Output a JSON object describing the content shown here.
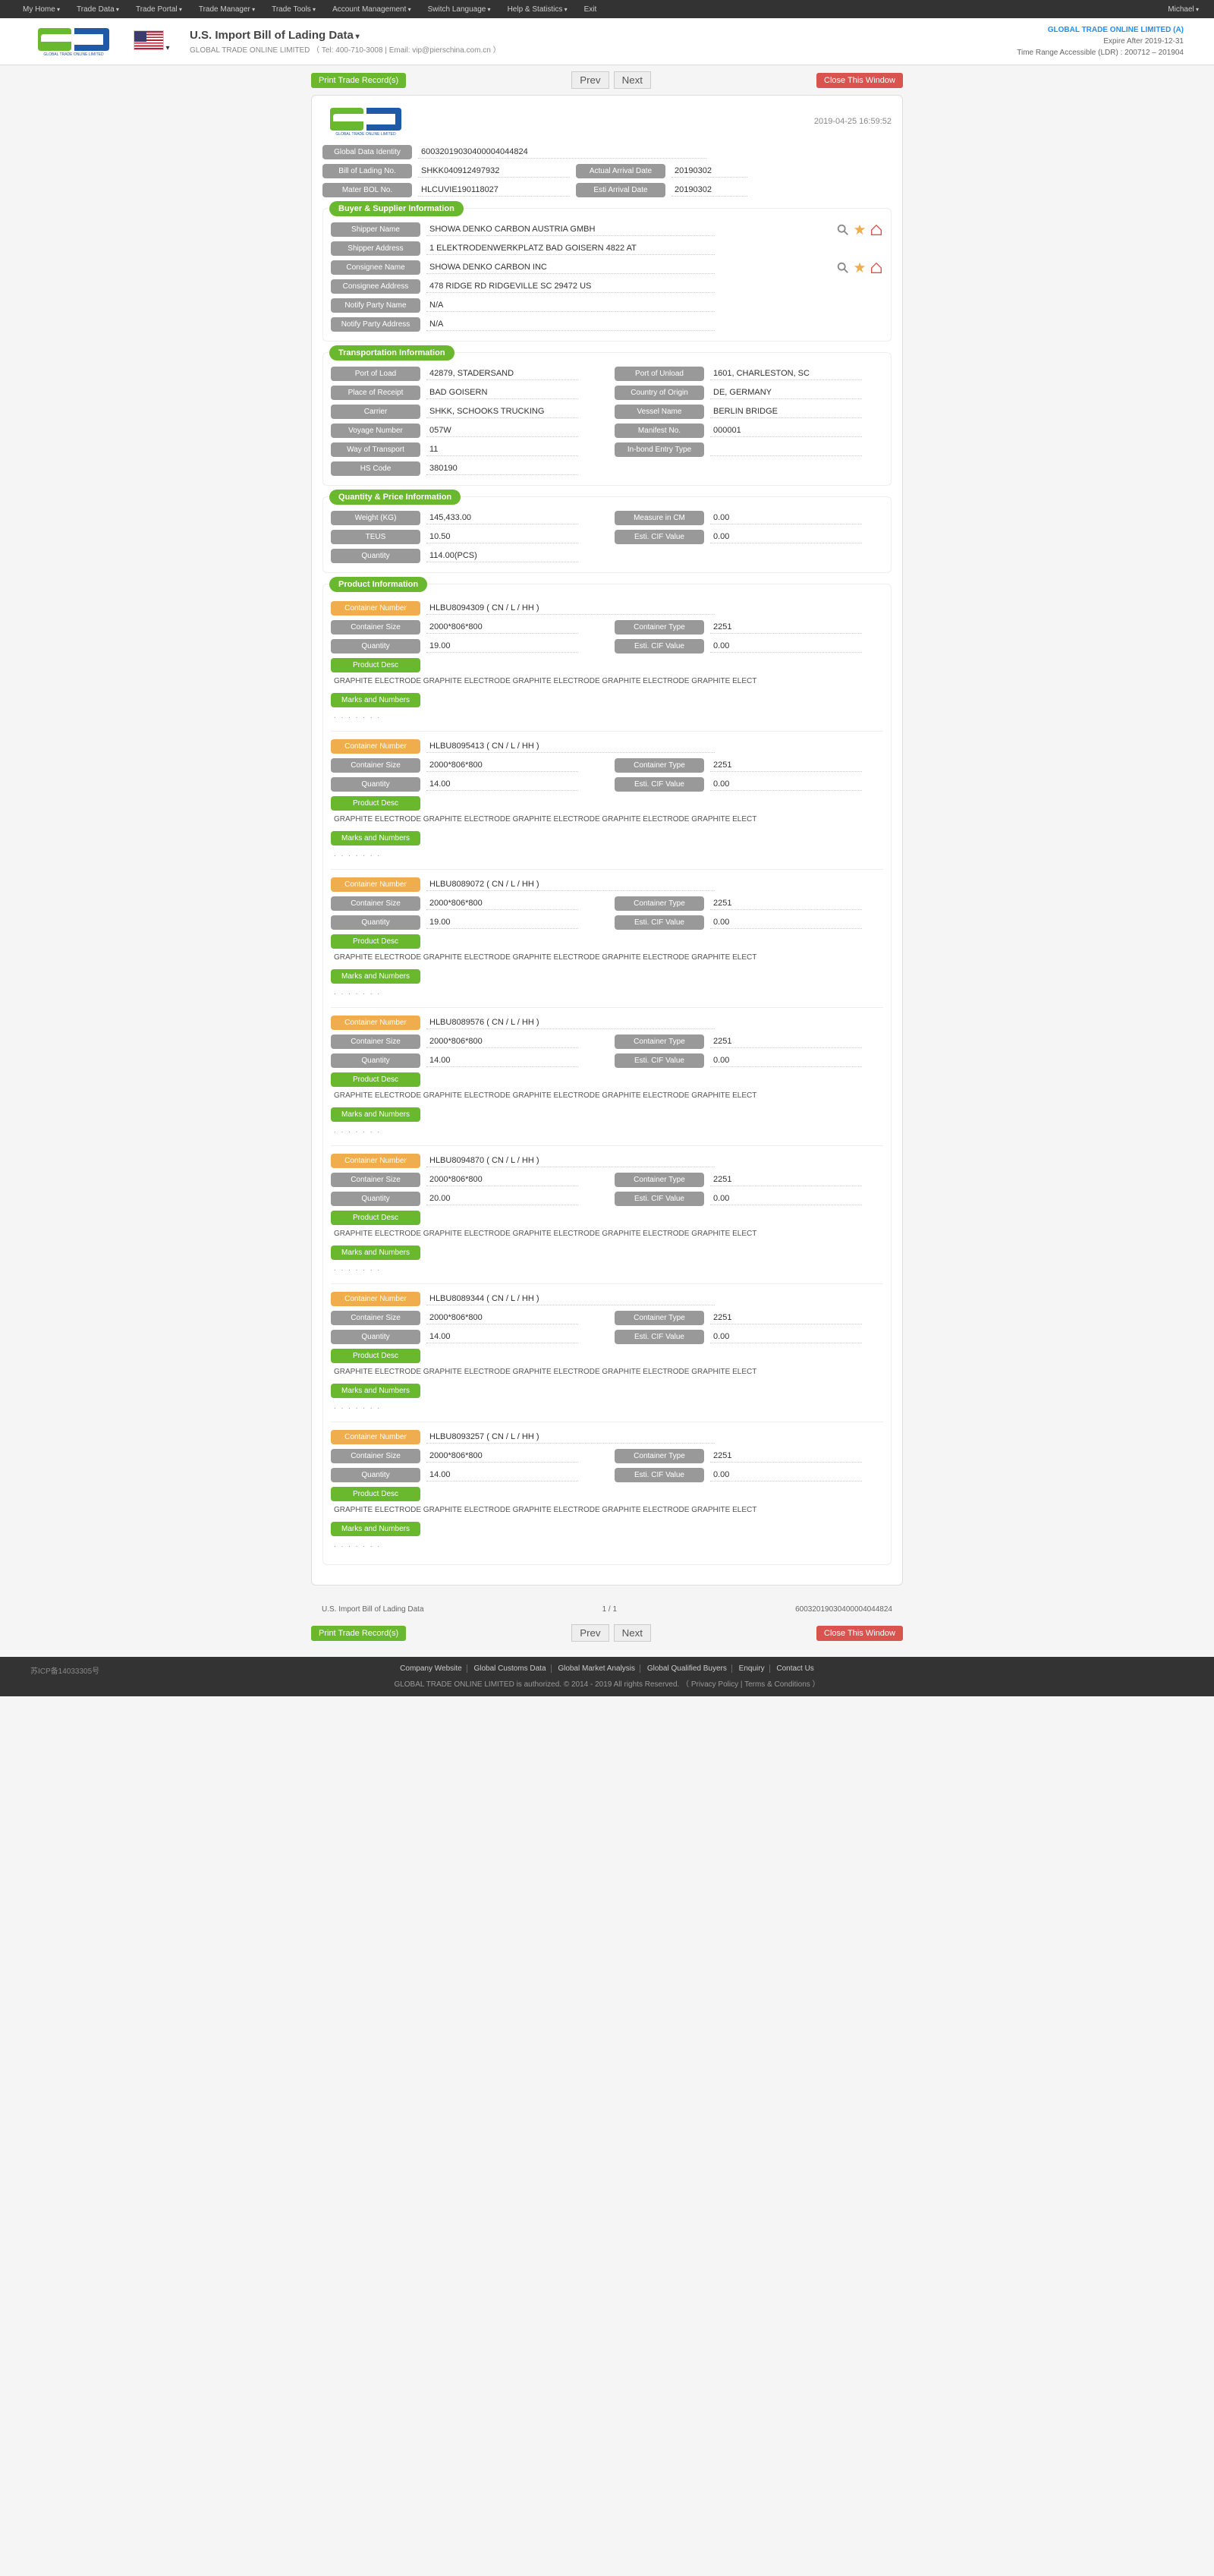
{
  "topnav": {
    "items": [
      "My Home",
      "Trade Data",
      "Trade Portal",
      "Trade Manager",
      "Trade Tools",
      "Account Management",
      "Switch Language",
      "Help & Statistics",
      "Exit"
    ],
    "user": "Michael"
  },
  "header": {
    "title": "U.S. Import Bill of Lading Data",
    "company_line": "GLOBAL TRADE ONLINE LIMITED （ Tel: 400-710-3008 | Email: vip@pierschina.com.cn ）",
    "right": {
      "l1": "GLOBAL TRADE ONLINE LIMITED (A)",
      "l2": "Expire After 2019-12-31",
      "l3": "Time Range Accessible (LDR) : 200712 – 201904"
    }
  },
  "actions": {
    "print": "Print Trade Record(s)",
    "prev": "Prev",
    "next": "Next",
    "close": "Close This Window"
  },
  "record": {
    "timestamp": "2019-04-25 16:59:52",
    "ident": {
      "gdi_label": "Global Data Identity",
      "gdi": "60032019030400004044824",
      "bol_label": "Bill of Lading No.",
      "bol": "SHKK040912497932",
      "mbol_label": "Mater BOL No.",
      "mbol": "HLCUVIE190118027",
      "aad_label": "Actual Arrival Date",
      "aad": "20190302",
      "ead_label": "Esti Arrival Date",
      "ead": "20190302"
    },
    "buyer": {
      "section": "Buyer & Supplier Information",
      "shipper_name_l": "Shipper Name",
      "shipper_name": "SHOWA DENKO CARBON AUSTRIA GMBH",
      "shipper_addr_l": "Shipper Address",
      "shipper_addr": "1 ELEKTRODENWERKPLATZ BAD GOISERN 4822 AT",
      "cons_name_l": "Consignee Name",
      "cons_name": "SHOWA DENKO CARBON INC",
      "cons_addr_l": "Consignee Address",
      "cons_addr": "478 RIDGE RD RIDGEVILLE SC 29472 US",
      "notify_name_l": "Notify Party Name",
      "notify_name": "N/A",
      "notify_addr_l": "Notify Party Address",
      "notify_addr": "N/A"
    },
    "trans": {
      "section": "Transportation Information",
      "pol_l": "Port of Load",
      "pol": "42879, STADERSAND",
      "pou_l": "Port of Unload",
      "pou": "1601, CHARLESTON, SC",
      "por_l": "Place of Receipt",
      "por": "BAD GOISERN",
      "coo_l": "Country of Origin",
      "coo": "DE, GERMANY",
      "carrier_l": "Carrier",
      "carrier": "SHKK, SCHOOKS TRUCKING",
      "vessel_l": "Vessel Name",
      "vessel": "BERLIN BRIDGE",
      "voyage_l": "Voyage Number",
      "voyage": "057W",
      "manifest_l": "Manifest No.",
      "manifest": "000001",
      "wot_l": "Way of Transport",
      "wot": "11",
      "inbond_l": "In-bond Entry Type",
      "inbond": "",
      "hs_l": "HS Code",
      "hs": "380190"
    },
    "qty": {
      "section": "Quantity & Price Information",
      "weight_l": "Weight (KG)",
      "weight": "145,433.00",
      "measure_l": "Measure in CM",
      "measure": "0.00",
      "teus_l": "TEUS",
      "teus": "10.50",
      "ecif_l": "Esti. CIF Value",
      "ecif": "0.00",
      "qty_l": "Quantity",
      "qty": "114.00(PCS)"
    },
    "product": {
      "section": "Product Information",
      "labels": {
        "cn": "Container Number",
        "cs": "Container Size",
        "ct": "Container Type",
        "q": "Quantity",
        "ecif": "Esti. CIF Value",
        "pd": "Product Desc",
        "mn": "Marks and Numbers"
      },
      "desc": "GRAPHITE ELECTRODE GRAPHITE ELECTRODE GRAPHITE ELECTRODE GRAPHITE ELECTRODE GRAPHITE ELECT",
      "dots": ". . . . . . .",
      "containers": [
        {
          "cn": "HLBU8094309 ( CN / L / HH )",
          "cs": "2000*806*800",
          "ct": "2251",
          "q": "19.00",
          "ecif": "0.00"
        },
        {
          "cn": "HLBU8095413 ( CN / L / HH )",
          "cs": "2000*806*800",
          "ct": "2251",
          "q": "14.00",
          "ecif": "0.00"
        },
        {
          "cn": "HLBU8089072 ( CN / L / HH )",
          "cs": "2000*806*800",
          "ct": "2251",
          "q": "19.00",
          "ecif": "0.00"
        },
        {
          "cn": "HLBU8089576 ( CN / L / HH )",
          "cs": "2000*806*800",
          "ct": "2251",
          "q": "14.00",
          "ecif": "0.00"
        },
        {
          "cn": "HLBU8094870 ( CN / L / HH )",
          "cs": "2000*806*800",
          "ct": "2251",
          "q": "20.00",
          "ecif": "0.00"
        },
        {
          "cn": "HLBU8089344 ( CN / L / HH )",
          "cs": "2000*806*800",
          "ct": "2251",
          "q": "14.00",
          "ecif": "0.00"
        },
        {
          "cn": "HLBU8093257 ( CN / L / HH )",
          "cs": "2000*806*800",
          "ct": "2251",
          "q": "14.00",
          "ecif": "0.00"
        }
      ]
    }
  },
  "footer_line": {
    "left": "U.S. Import Bill of Lading Data",
    "center": "1 / 1",
    "right": "60032019030400004044824"
  },
  "site_footer": {
    "links": [
      "Company Website",
      "Global Customs Data",
      "Global Market Analysis",
      "Global Qualified Buyers",
      "Enquiry",
      "Contact Us"
    ],
    "copy": "GLOBAL TRADE ONLINE LIMITED is authorized. © 2014 - 2019 All rights Reserved.  （ Privacy Policy | Terms & Conditions ）",
    "icp": "苏ICP备14033305号"
  },
  "colors": {
    "green": "#6ab82e",
    "orange": "#f0ad4e",
    "red": "#d9534f",
    "gray_pill": "#999999"
  }
}
